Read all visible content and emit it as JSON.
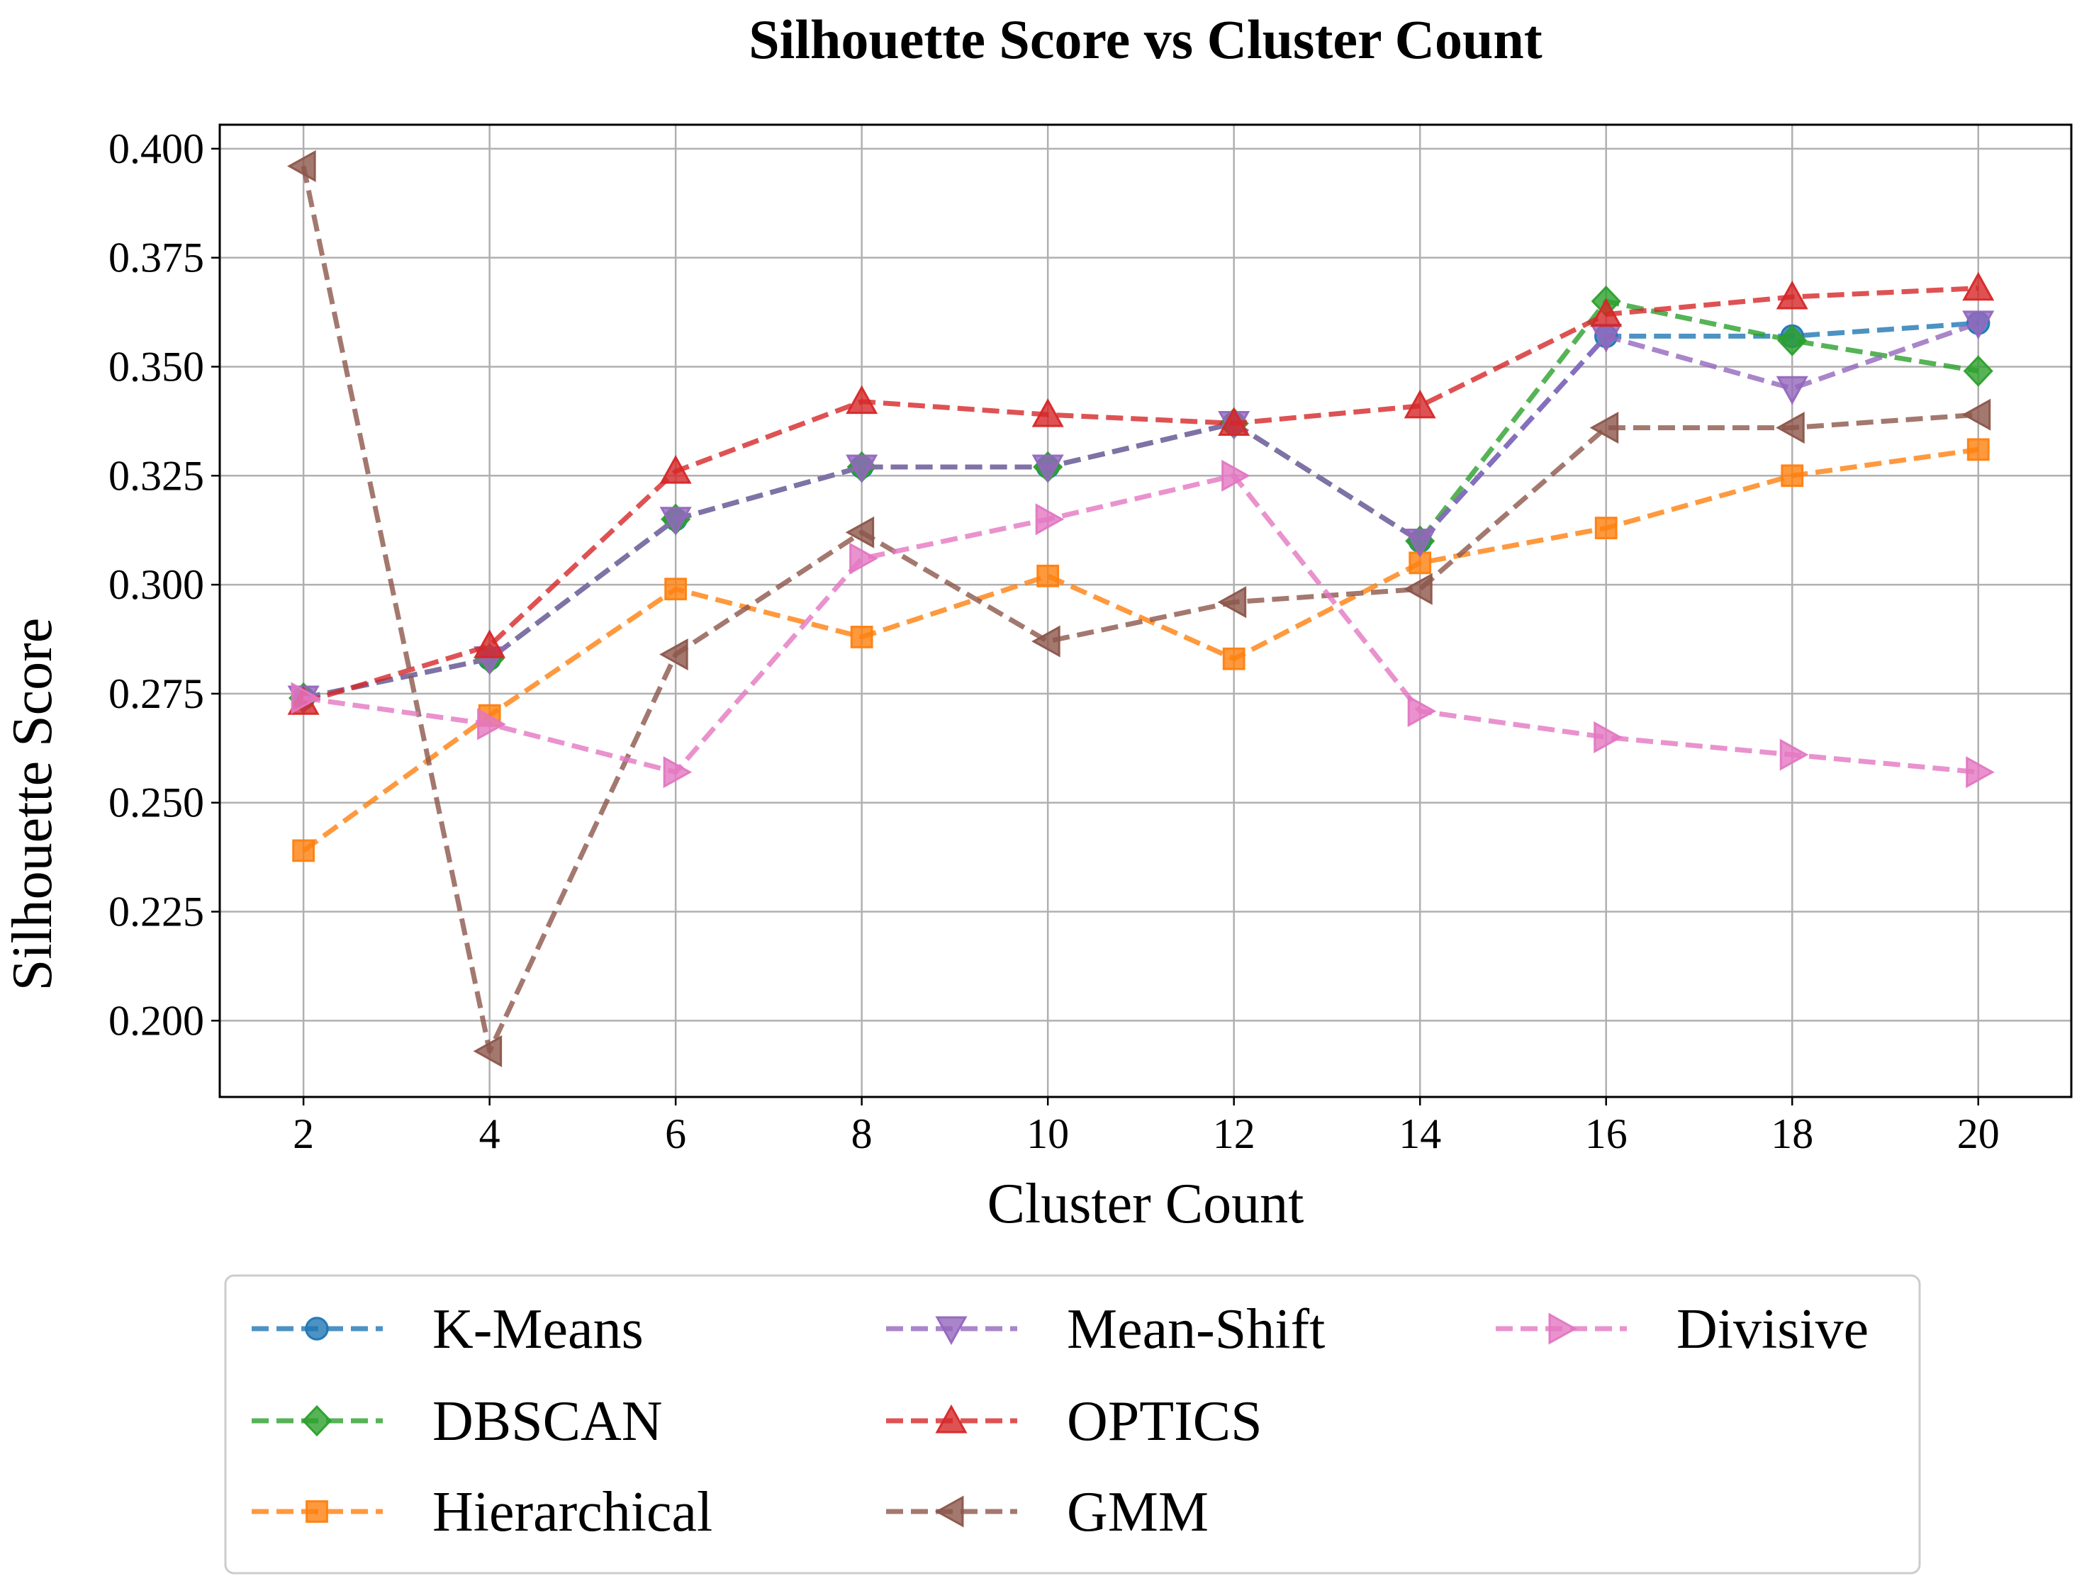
{
  "chart_data": {
    "type": "line",
    "title": "Silhouette Score vs Cluster Count",
    "xlabel": "Cluster Count",
    "ylabel": "Silhouette Score",
    "x": [
      2,
      4,
      6,
      8,
      10,
      12,
      14,
      16,
      18,
      20
    ],
    "xticks": [
      "2",
      "4",
      "6",
      "8",
      "10",
      "12",
      "14",
      "16",
      "18",
      "20"
    ],
    "yticks": [
      "0.200",
      "0.225",
      "0.250",
      "0.275",
      "0.300",
      "0.325",
      "0.350",
      "0.375",
      "0.400"
    ],
    "xlim": [
      1.1,
      21.0
    ],
    "ylim": [
      0.1825,
      0.4055
    ],
    "grid": true,
    "legend_position": "bottom",
    "series": [
      {
        "name": "K-Means",
        "color": "#1f77b4",
        "marker": "circle",
        "values": [
          0.274,
          0.283,
          0.315,
          0.327,
          0.327,
          0.337,
          0.31,
          0.357,
          0.357,
          0.36
        ]
      },
      {
        "name": "DBSCAN",
        "color": "#2ca02c",
        "marker": "diamond",
        "values": [
          0.274,
          0.283,
          0.315,
          0.327,
          0.327,
          0.337,
          0.31,
          0.365,
          0.356,
          0.349
        ]
      },
      {
        "name": "Hierarchical",
        "color": "#ff7f0e",
        "marker": "square",
        "values": [
          0.239,
          0.27,
          0.299,
          0.288,
          0.302,
          0.283,
          0.305,
          0.313,
          0.325,
          0.331
        ]
      },
      {
        "name": "Mean-Shift",
        "color": "#9467bd",
        "marker": "triangle-down",
        "values": [
          0.274,
          0.283,
          0.315,
          0.327,
          0.327,
          0.337,
          0.31,
          0.357,
          0.345,
          0.36
        ]
      },
      {
        "name": "OPTICS",
        "color": "#d62728",
        "marker": "triangle-up",
        "values": [
          0.273,
          0.286,
          0.326,
          0.342,
          0.339,
          0.337,
          0.341,
          0.362,
          0.366,
          0.368
        ]
      },
      {
        "name": "GMM",
        "color": "#8c564b",
        "marker": "triangle-left",
        "values": [
          0.396,
          0.193,
          0.284,
          0.312,
          0.287,
          0.296,
          0.299,
          0.336,
          0.336,
          0.339
        ]
      },
      {
        "name": "Divisive",
        "color": "#e377c2",
        "marker": "triangle-right",
        "values": [
          0.274,
          0.268,
          0.257,
          0.306,
          0.315,
          0.325,
          0.271,
          0.265,
          0.261,
          0.257
        ]
      }
    ]
  }
}
